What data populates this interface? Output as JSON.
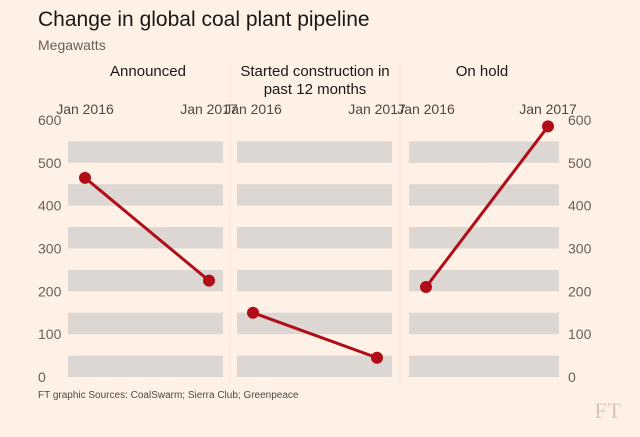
{
  "chart_data": {
    "type": "slope",
    "title": "Change in global coal plant pipeline",
    "subtitle": "Megawatts",
    "ylabel": "Megawatts",
    "ylim": [
      0,
      600
    ],
    "yticks": [
      "0",
      "100",
      "200",
      "300",
      "400",
      "500",
      "600"
    ],
    "categories": [
      "Jan 2016",
      "Jan 2017"
    ],
    "panels": [
      {
        "title": "Announced",
        "values": [
          465,
          225
        ]
      },
      {
        "title": "Started construction in past 12 months",
        "values": [
          150,
          45
        ]
      },
      {
        "title": "On hold",
        "values": [
          210,
          585
        ]
      }
    ]
  },
  "source": "FT graphic Sources: CoalSwarm; Sierra Club; Greenpeace",
  "logo": "FT",
  "colors": {
    "background": "#fff1e5",
    "band": "#dcd7d2",
    "line": "#b00d19",
    "text": "#33302e"
  }
}
